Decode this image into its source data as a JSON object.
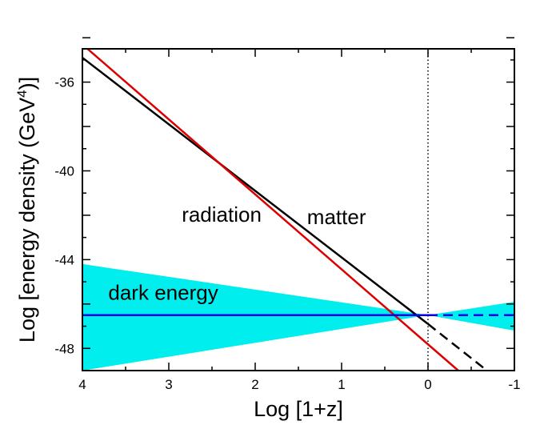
{
  "chart_data": {
    "type": "line",
    "xlabel": "Log [1+z]",
    "ylabel_main": "Log [energy density (GeV",
    "ylabel_sup": "4",
    "ylabel_end": ")]",
    "xlim": [
      4,
      -1
    ],
    "ylim": [
      -49,
      -34.5
    ],
    "x_reversed": true,
    "grid": false,
    "xticks": [
      4,
      3,
      2,
      1,
      0,
      -1
    ],
    "xtick_labels": [
      "4",
      "3",
      "2",
      "1",
      "0",
      "-1"
    ],
    "yticks": [
      -36,
      -40,
      -44,
      -48
    ],
    "ytick_labels": [
      "-36",
      "-40",
      "-44",
      "-48"
    ],
    "reference_line": {
      "x": 0,
      "style": "dotted"
    },
    "band": {
      "name": "dark energy",
      "color": "#00eeee",
      "upper": [
        [
          4,
          -44.2
        ],
        [
          0,
          -46.5
        ],
        [
          -1,
          -45.9
        ]
      ],
      "lower": [
        [
          4,
          -49.0
        ],
        [
          0,
          -46.5
        ],
        [
          -1,
          -47.2
        ]
      ]
    },
    "series": [
      {
        "name": "matter",
        "color": "#000000",
        "x": [
          4,
          0
        ],
        "y": [
          -34.9,
          -46.9
        ],
        "extension": {
          "x": [
            0,
            -0.65
          ],
          "y": [
            -46.9,
            -48.9
          ],
          "style": "dashed"
        }
      },
      {
        "name": "radiation",
        "color": "#dd0000",
        "x": [
          4,
          -0.35
        ],
        "y": [
          -34.3,
          -49.0
        ]
      },
      {
        "name": "dark energy",
        "color": "#0000ee",
        "x": [
          4,
          0
        ],
        "y": [
          -46.5,
          -46.5
        ],
        "extension": {
          "x": [
            0,
            -1
          ],
          "y": [
            -46.5,
            -46.5
          ],
          "style": "dashed"
        }
      }
    ],
    "annotations": [
      {
        "text": "radiation",
        "x": 2.85,
        "y": -42.3
      },
      {
        "text": "matter",
        "x": 1.4,
        "y": -42.4
      },
      {
        "text": "dark energy",
        "x": 3.7,
        "y": -45.8
      }
    ]
  }
}
